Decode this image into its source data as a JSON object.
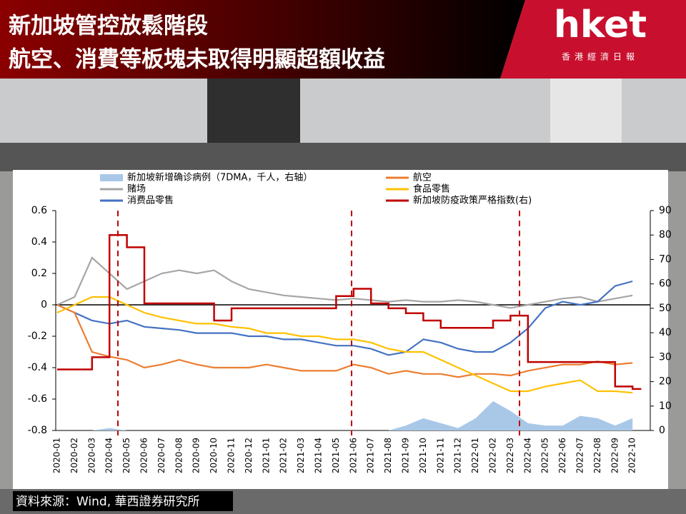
{
  "header": {
    "title_lines": [
      "新加坡管控放鬆階段",
      "航空、消費等板塊未取得明顯超額收益"
    ],
    "logo": "hket",
    "logo_sub": "香港經濟日報"
  },
  "source": "資料來源：Wind, 華西證券研究所",
  "chart_data": {
    "type": "line",
    "categories": [
      "2020-01",
      "2020-02",
      "2020-03",
      "2020-04",
      "2020-05",
      "2020-06",
      "2020-07",
      "2020-08",
      "2020-09",
      "2020-10",
      "2020-11",
      "2020-12",
      "2021-01",
      "2021-02",
      "2021-03",
      "2021-04",
      "2021-05",
      "2021-06",
      "2021-07",
      "2021-08",
      "2021-09",
      "2021-10",
      "2021-11",
      "2021-12",
      "2022-01",
      "2022-02",
      "2022-03",
      "2022-04",
      "2022-05",
      "2022-06",
      "2022-07",
      "2022-08",
      "2022-09",
      "2022-10"
    ],
    "ylim": [
      -0.8,
      0.6
    ],
    "yticks": [
      -0.8,
      -0.6,
      -0.4,
      -0.2,
      0,
      0.2,
      0.4,
      0.6
    ],
    "y2lim": [
      0,
      90
    ],
    "y2ticks": [
      0,
      10,
      20,
      30,
      40,
      50,
      60,
      70,
      80,
      90
    ],
    "series": [
      {
        "name": "新加坡新增确诊病例（7DMA，千人，右轴）",
        "type": "area",
        "axis": "y2",
        "color": "#a9c8e8",
        "values": [
          0,
          0,
          0,
          1,
          0,
          0,
          0,
          0,
          0,
          0,
          0,
          0,
          0,
          0,
          0,
          0,
          0,
          0,
          0,
          0,
          2,
          5,
          3,
          1,
          5,
          12,
          8,
          3,
          2,
          2,
          6,
          5,
          2,
          5
        ]
      },
      {
        "name": "赌场",
        "color": "#a6a6a6",
        "values": [
          0,
          0.05,
          0.3,
          0.2,
          0.1,
          0.15,
          0.2,
          0.22,
          0.2,
          0.22,
          0.15,
          0.1,
          0.08,
          0.06,
          0.05,
          0.04,
          0.03,
          0.04,
          0.03,
          0.02,
          0.03,
          0.02,
          0.02,
          0.03,
          0.02,
          0,
          -0.02,
          0,
          0.02,
          0.04,
          0.05,
          0.02,
          0.04,
          0.06
        ]
      },
      {
        "name": "消费品零售",
        "color": "#4472c4",
        "values": [
          0,
          -0.05,
          -0.1,
          -0.12,
          -0.1,
          -0.14,
          -0.15,
          -0.16,
          -0.18,
          -0.18,
          -0.18,
          -0.2,
          -0.2,
          -0.22,
          -0.22,
          -0.24,
          -0.26,
          -0.26,
          -0.28,
          -0.32,
          -0.3,
          -0.22,
          -0.24,
          -0.28,
          -0.3,
          -0.3,
          -0.24,
          -0.15,
          -0.02,
          0.02,
          0,
          0.02,
          0.12,
          0.15
        ]
      },
      {
        "name": "航空",
        "color": "#ed7d31",
        "values": [
          0,
          -0.05,
          -0.3,
          -0.33,
          -0.35,
          -0.4,
          -0.38,
          -0.35,
          -0.38,
          -0.4,
          -0.4,
          -0.4,
          -0.38,
          -0.4,
          -0.42,
          -0.42,
          -0.42,
          -0.38,
          -0.4,
          -0.44,
          -0.42,
          -0.44,
          -0.44,
          -0.46,
          -0.44,
          -0.44,
          -0.45,
          -0.42,
          -0.4,
          -0.38,
          -0.38,
          -0.36,
          -0.38,
          -0.37
        ]
      },
      {
        "name": "食品零售",
        "color": "#ffc000",
        "values": [
          -0.05,
          0,
          0.05,
          0.05,
          0,
          -0.05,
          -0.08,
          -0.1,
          -0.12,
          -0.12,
          -0.14,
          -0.15,
          -0.18,
          -0.18,
          -0.2,
          -0.2,
          -0.22,
          -0.22,
          -0.24,
          -0.28,
          -0.3,
          -0.3,
          -0.35,
          -0.4,
          -0.45,
          -0.5,
          -0.55,
          -0.55,
          -0.52,
          -0.5,
          -0.48,
          -0.55,
          -0.55,
          -0.56
        ]
      },
      {
        "name": "新加坡防疫政策严格指数(右)",
        "type": "step",
        "axis": "y2",
        "color": "#c00000",
        "values": [
          25,
          25,
          30,
          80,
          75,
          52,
          52,
          52,
          52,
          45,
          50,
          50,
          50,
          50,
          50,
          50,
          55,
          58,
          52,
          50,
          48,
          45,
          42,
          42,
          42,
          45,
          47,
          28,
          28,
          28,
          28,
          28,
          18,
          17
        ]
      }
    ]
  }
}
